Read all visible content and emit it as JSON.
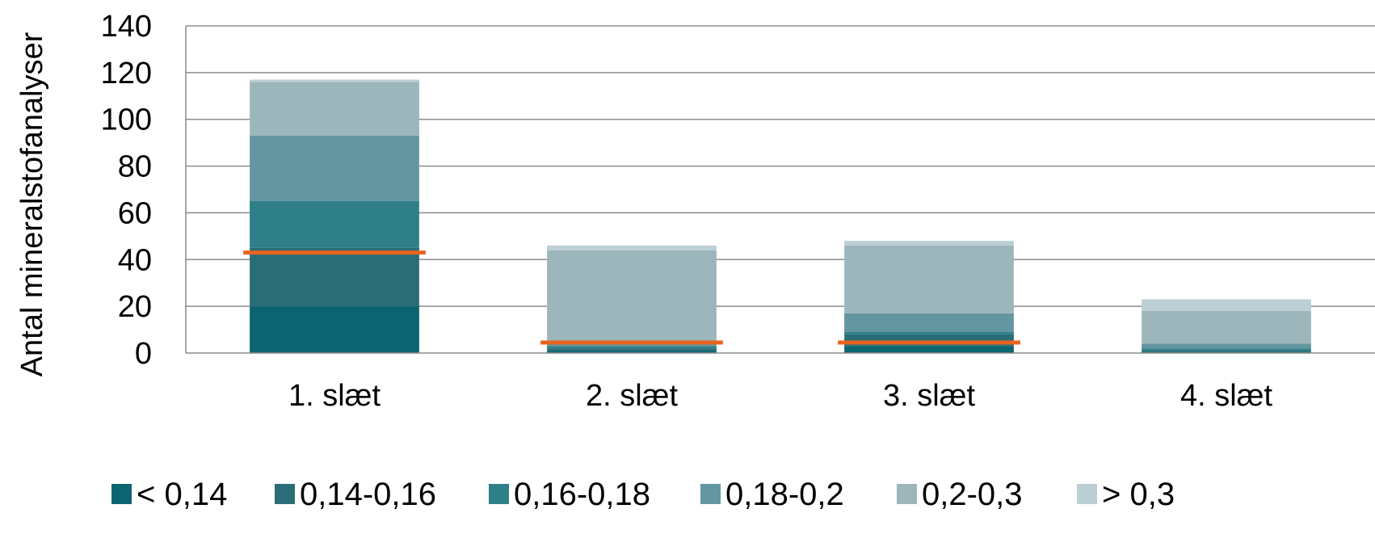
{
  "chart_data": {
    "type": "bar",
    "stacked": true,
    "title": "",
    "xlabel": "",
    "ylabel": "Antal mineralstofanalyser",
    "ylim": [
      0,
      140
    ],
    "yticks": [
      0,
      20,
      40,
      60,
      80,
      100,
      120,
      140
    ],
    "grid": true,
    "legend_position": "bottom",
    "categories": [
      "1. slæt",
      "2. slæt",
      "3. slæt",
      "4. slæt"
    ],
    "series": [
      {
        "name": "< 0,14",
        "color": "#0b6470",
        "values": [
          20,
          1,
          3,
          0
        ]
      },
      {
        "name": "0,14-0,16",
        "color": "#2a6d77",
        "values": [
          25,
          1,
          5,
          1
        ]
      },
      {
        "name": "0,16-0,18",
        "color": "#2f7f89",
        "values": [
          20,
          1,
          1,
          1
        ]
      },
      {
        "name": "0,18-0,2",
        "color": "#6496a1",
        "values": [
          28,
          2,
          8,
          2
        ]
      },
      {
        "name": "0,2-0,3",
        "color": "#9cb6bc",
        "values": [
          23,
          39,
          29,
          14
        ]
      },
      {
        "name": "> 0,3",
        "color": "#bccfd4",
        "values": [
          1,
          2,
          2,
          5
        ]
      }
    ],
    "reference_lines": {
      "color": "#e8641c",
      "values": [
        43,
        4.5,
        4.5,
        null
      ]
    }
  }
}
